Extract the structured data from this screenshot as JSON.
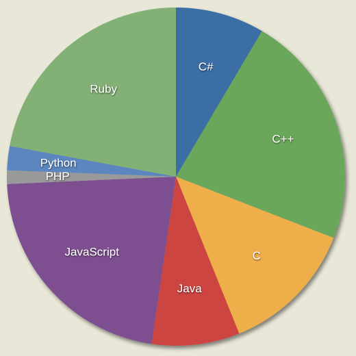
{
  "chart_data": {
    "type": "pie",
    "categories": [
      "C#",
      "C++",
      "C",
      "Java",
      "JavaScript",
      "PHP",
      "Python",
      "Ruby"
    ],
    "values": [
      8.5,
      22.4,
      13,
      8.4,
      22,
      1.3,
      2.3,
      22.1
    ],
    "colors": [
      "#3a6ea5",
      "#6aa75a",
      "#eeae4a",
      "#cc4440",
      "#7e5090",
      "#999999",
      "#5b86bf",
      "#82b074"
    ]
  }
}
